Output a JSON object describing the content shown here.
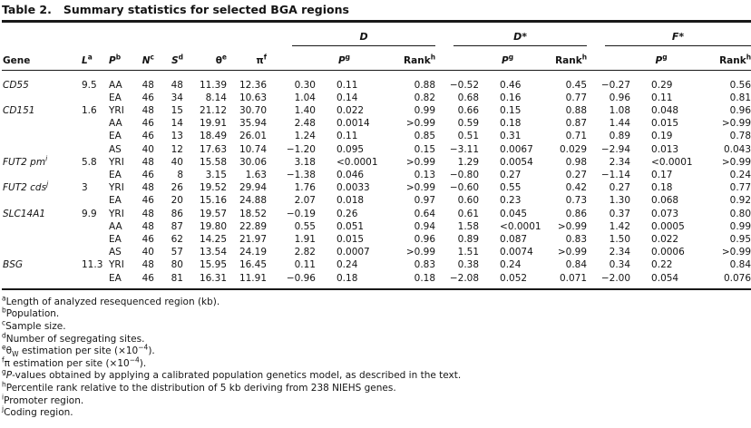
{
  "title": {
    "label": "Table 2.",
    "text": "Summary statistics for selected BGA regions"
  },
  "table": {
    "header": {
      "gene": "Gene",
      "L": {
        "base": "L",
        "sup": "a"
      },
      "P": {
        "base": "P",
        "sup": "b"
      },
      "N": {
        "base": "N",
        "sup": "c"
      },
      "S": {
        "base": "S",
        "sup": "d"
      },
      "theta": {
        "base": "θ",
        "sup": "e"
      },
      "pi": {
        "base": "π",
        "sup": "f"
      },
      "groups": [
        "D",
        "D*",
        "F*"
      ],
      "p": {
        "base": "P",
        "sup": "g"
      },
      "rank": {
        "base": "Rank",
        "sup": "h"
      }
    },
    "rows": [
      {
        "gene": "CD55",
        "sup": "",
        "L": "9.5",
        "pop": "AA",
        "N": "48",
        "S": "48",
        "th": "11.39",
        "pi": "12.36",
        "D": [
          "0.30",
          "0.11",
          "0.88"
        ],
        "Ds": [
          "−0.52",
          "0.46",
          "0.45"
        ],
        "Fs": [
          "−0.27",
          "0.29",
          "0.56"
        ]
      },
      {
        "gene": "",
        "sup": "",
        "L": "",
        "pop": "EA",
        "N": "46",
        "S": "34",
        "th": "8.14",
        "pi": "10.63",
        "D": [
          "1.04",
          "0.14",
          "0.82"
        ],
        "Ds": [
          "0.68",
          "0.16",
          "0.77"
        ],
        "Fs": [
          "0.96",
          "0.11",
          "0.81"
        ]
      },
      {
        "gene": "CD151",
        "sup": "",
        "L": "1.6",
        "pop": "YRI",
        "N": "48",
        "S": "15",
        "th": "21.12",
        "pi": "30.70",
        "D": [
          "1.40",
          "0.022",
          "0.99"
        ],
        "Ds": [
          "0.66",
          "0.15",
          "0.88"
        ],
        "Fs": [
          "1.08",
          "0.048",
          "0.96"
        ]
      },
      {
        "gene": "",
        "sup": "",
        "L": "",
        "pop": "AA",
        "N": "46",
        "S": "14",
        "th": "19.91",
        "pi": "35.94",
        "D": [
          "2.48",
          "0.0014",
          ">0.99"
        ],
        "Ds": [
          "0.59",
          "0.18",
          "0.87"
        ],
        "Fs": [
          "1.44",
          "0.015",
          ">0.99"
        ]
      },
      {
        "gene": "",
        "sup": "",
        "L": "",
        "pop": "EA",
        "N": "46",
        "S": "13",
        "th": "18.49",
        "pi": "26.01",
        "D": [
          "1.24",
          "0.11",
          "0.85"
        ],
        "Ds": [
          "0.51",
          "0.31",
          "0.71"
        ],
        "Fs": [
          "0.89",
          "0.19",
          "0.78"
        ]
      },
      {
        "gene": "",
        "sup": "",
        "L": "",
        "pop": "AS",
        "N": "40",
        "S": "12",
        "th": "17.63",
        "pi": "10.74",
        "D": [
          "−1.20",
          "0.095",
          "0.15"
        ],
        "Ds": [
          "−3.11",
          "0.0067",
          "0.029"
        ],
        "Fs": [
          "−2.94",
          "0.013",
          "0.043"
        ]
      },
      {
        "gene": "FUT2 pm",
        "sup": "i",
        "L": "5.8",
        "pop": "YRI",
        "N": "48",
        "S": "40",
        "th": "15.58",
        "pi": "30.06",
        "D": [
          "3.18",
          "<0.0001",
          ">0.99"
        ],
        "Ds": [
          "1.29",
          "0.0054",
          "0.98"
        ],
        "Fs": [
          "2.34",
          "<0.0001",
          ">0.99"
        ]
      },
      {
        "gene": "",
        "sup": "",
        "L": "",
        "pop": "EA",
        "N": "46",
        "S": "8",
        "th": "3.15",
        "pi": "1.63",
        "D": [
          "−1.38",
          "0.046",
          "0.13"
        ],
        "Ds": [
          "−0.80",
          "0.27",
          "0.27"
        ],
        "Fs": [
          "−1.14",
          "0.17",
          "0.24"
        ]
      },
      {
        "gene": "FUT2 cds",
        "sup": "j",
        "L": "3",
        "pop": "YRI",
        "N": "48",
        "S": "26",
        "th": "19.52",
        "pi": "29.94",
        "D": [
          "1.76",
          "0.0033",
          ">0.99"
        ],
        "Ds": [
          "−0.60",
          "0.55",
          "0.42"
        ],
        "Fs": [
          "0.27",
          "0.18",
          "0.77"
        ]
      },
      {
        "gene": "",
        "sup": "",
        "L": "",
        "pop": "EA",
        "N": "46",
        "S": "20",
        "th": "15.16",
        "pi": "24.88",
        "D": [
          "2.07",
          "0.018",
          "0.97"
        ],
        "Ds": [
          "0.60",
          "0.23",
          "0.73"
        ],
        "Fs": [
          "1.30",
          "0.068",
          "0.92"
        ]
      },
      {
        "gene": "SLC14A1",
        "sup": "",
        "L": "9.9",
        "pop": "YRI",
        "N": "48",
        "S": "86",
        "th": "19.57",
        "pi": "18.52",
        "D": [
          "−0.19",
          "0.26",
          "0.64"
        ],
        "Ds": [
          "0.61",
          "0.045",
          "0.86"
        ],
        "Fs": [
          "0.37",
          "0.073",
          "0.80"
        ]
      },
      {
        "gene": "",
        "sup": "",
        "L": "",
        "pop": "AA",
        "N": "48",
        "S": "87",
        "th": "19.80",
        "pi": "22.89",
        "D": [
          "0.55",
          "0.051",
          "0.94"
        ],
        "Ds": [
          "1.58",
          "<0.0001",
          ">0.99"
        ],
        "Fs": [
          "1.42",
          "0.0005",
          "0.99"
        ]
      },
      {
        "gene": "",
        "sup": "",
        "L": "",
        "pop": "EA",
        "N": "46",
        "S": "62",
        "th": "14.25",
        "pi": "21.97",
        "D": [
          "1.91",
          "0.015",
          "0.96"
        ],
        "Ds": [
          "0.89",
          "0.087",
          "0.83"
        ],
        "Fs": [
          "1.50",
          "0.022",
          "0.95"
        ]
      },
      {
        "gene": "",
        "sup": "",
        "L": "",
        "pop": "AS",
        "N": "40",
        "S": "57",
        "th": "13.54",
        "pi": "24.19",
        "D": [
          "2.82",
          "0.0007",
          ">0.99"
        ],
        "Ds": [
          "1.51",
          "0.0074",
          ">0.99"
        ],
        "Fs": [
          "2.34",
          "0.0006",
          ">0.99"
        ]
      },
      {
        "gene": "BSG",
        "sup": "",
        "L": "11.3",
        "pop": "YRI",
        "N": "48",
        "S": "80",
        "th": "15.95",
        "pi": "16.45",
        "D": [
          "0.11",
          "0.24",
          "0.83"
        ],
        "Ds": [
          "0.38",
          "0.24",
          "0.84"
        ],
        "Fs": [
          "0.34",
          "0.22",
          "0.84"
        ]
      },
      {
        "gene": "",
        "sup": "",
        "L": "",
        "pop": "EA",
        "N": "46",
        "S": "81",
        "th": "16.31",
        "pi": "11.91",
        "D": [
          "−0.96",
          "0.18",
          "0.18"
        ],
        "Ds": [
          "−2.08",
          "0.052",
          "0.071"
        ],
        "Fs": [
          "−2.00",
          "0.054",
          "0.076"
        ]
      }
    ]
  },
  "footnotes": [
    {
      "sup": "a",
      "parts": [
        {
          "t": "Length of analyzed resequenced region (kb)."
        }
      ]
    },
    {
      "sup": "b",
      "parts": [
        {
          "t": "Population."
        }
      ]
    },
    {
      "sup": "c",
      "parts": [
        {
          "t": "Sample size."
        }
      ]
    },
    {
      "sup": "d",
      "parts": [
        {
          "t": "Number of segregating sites."
        }
      ]
    },
    {
      "sup": "e",
      "parts": [
        {
          "t": "θ"
        },
        {
          "t": "W",
          "style": "sub"
        },
        {
          "t": " estimation per site (×10"
        },
        {
          "t": "−4",
          "style": "sup"
        },
        {
          "t": ")."
        }
      ]
    },
    {
      "sup": "f",
      "parts": [
        {
          "t": "π estimation per site (×10"
        },
        {
          "t": "−4",
          "style": "sup"
        },
        {
          "t": ")."
        }
      ]
    },
    {
      "sup": "g",
      "parts": [
        {
          "t": "P",
          "style": "italic"
        },
        {
          "t": "-values obtained by applying a calibrated population genetics model, as described in the text."
        }
      ]
    },
    {
      "sup": "h",
      "parts": [
        {
          "t": "Percentile rank relative to the distribution of 5 kb deriving from 238 NIEHS genes."
        }
      ]
    },
    {
      "sup": "i",
      "parts": [
        {
          "t": "Promoter region."
        }
      ]
    },
    {
      "sup": "j",
      "parts": [
        {
          "t": "Coding region."
        }
      ]
    }
  ]
}
